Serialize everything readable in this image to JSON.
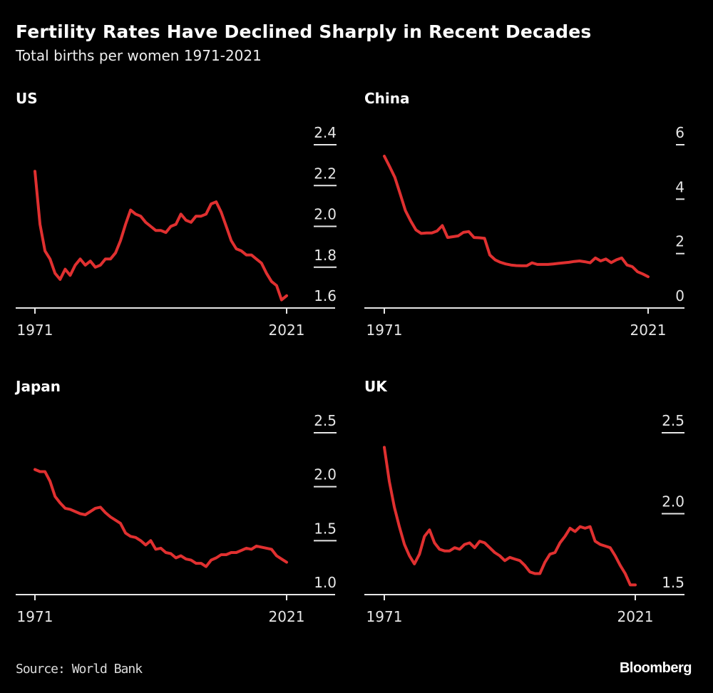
{
  "header": {
    "title": "Fertility Rates Have Declined Sharply in Recent Decades",
    "subtitle": "Total births per women 1971-2021"
  },
  "footer": {
    "source": "Source: World Bank",
    "logo": "Bloomberg"
  },
  "colors": {
    "background": "#000000",
    "line": "#e03030",
    "text": "#ffffff"
  },
  "chart_data": [
    {
      "type": "line",
      "title": "US",
      "x_ticks": [
        "1971",
        "2021"
      ],
      "y_ticks": [
        "1.6",
        "1.8",
        "2.0",
        "2.2",
        "2.4"
      ],
      "ylim": [
        1.6,
        2.4
      ],
      "xlim": [
        1971,
        2021
      ],
      "y_axis_side": "right",
      "grid": false,
      "x_start": 1971,
      "values": [
        2.27,
        2.01,
        1.88,
        1.84,
        1.77,
        1.74,
        1.79,
        1.76,
        1.81,
        1.84,
        1.81,
        1.83,
        1.8,
        1.81,
        1.84,
        1.84,
        1.87,
        1.93,
        2.01,
        2.08,
        2.06,
        2.05,
        2.02,
        2.0,
        1.98,
        1.98,
        1.97,
        2.0,
        2.01,
        2.06,
        2.03,
        2.02,
        2.05,
        2.05,
        2.06,
        2.11,
        2.12,
        2.07,
        2.0,
        1.93,
        1.89,
        1.88,
        1.86,
        1.86,
        1.84,
        1.82,
        1.77,
        1.73,
        1.71,
        1.64,
        1.66
      ]
    },
    {
      "type": "line",
      "title": "China",
      "x_ticks": [
        "1971",
        "2021"
      ],
      "y_ticks": [
        "0",
        "2",
        "4",
        "6"
      ],
      "ylim": [
        0,
        6
      ],
      "xlim": [
        1971,
        2021
      ],
      "y_axis_side": "right",
      "grid": false,
      "x_start": 1971,
      "values": [
        5.58,
        5.2,
        4.8,
        4.2,
        3.58,
        3.2,
        2.87,
        2.74,
        2.76,
        2.76,
        2.83,
        3.03,
        2.59,
        2.62,
        2.65,
        2.78,
        2.81,
        2.59,
        2.58,
        2.56,
        1.95,
        1.77,
        1.68,
        1.62,
        1.58,
        1.56,
        1.55,
        1.55,
        1.66,
        1.6,
        1.6,
        1.6,
        1.62,
        1.64,
        1.66,
        1.68,
        1.71,
        1.73,
        1.7,
        1.66,
        1.84,
        1.73,
        1.8,
        1.67,
        1.77,
        1.84,
        1.58,
        1.52,
        1.33,
        1.25,
        1.15
      ]
    },
    {
      "type": "line",
      "title": "Japan",
      "x_ticks": [
        "1971",
        "2021"
      ],
      "y_ticks": [
        "1.0",
        "1.5",
        "2.0",
        "2.5"
      ],
      "ylim": [
        1.0,
        2.5
      ],
      "xlim": [
        1971,
        2021
      ],
      "y_axis_side": "right",
      "grid": false,
      "x_start": 1971,
      "values": [
        2.16,
        2.14,
        2.14,
        2.05,
        1.91,
        1.85,
        1.8,
        1.79,
        1.77,
        1.75,
        1.74,
        1.77,
        1.8,
        1.81,
        1.76,
        1.72,
        1.69,
        1.66,
        1.57,
        1.54,
        1.53,
        1.5,
        1.46,
        1.5,
        1.42,
        1.43,
        1.39,
        1.38,
        1.34,
        1.36,
        1.33,
        1.32,
        1.29,
        1.29,
        1.26,
        1.32,
        1.34,
        1.37,
        1.37,
        1.39,
        1.39,
        1.41,
        1.43,
        1.42,
        1.45,
        1.44,
        1.43,
        1.42,
        1.36,
        1.33,
        1.3
      ]
    },
    {
      "type": "line",
      "title": "UK",
      "x_ticks": [
        "1971",
        "2021"
      ],
      "y_ticks": [
        "1.5",
        "2.0",
        "2.5"
      ],
      "ylim": [
        1.5,
        2.5
      ],
      "xlim": [
        1971,
        2021
      ],
      "y_axis_side": "right",
      "grid": false,
      "x_start": 1971,
      "values": [
        2.41,
        2.2,
        2.04,
        1.92,
        1.81,
        1.74,
        1.69,
        1.75,
        1.86,
        1.9,
        1.82,
        1.78,
        1.77,
        1.77,
        1.79,
        1.78,
        1.81,
        1.82,
        1.79,
        1.83,
        1.82,
        1.79,
        1.76,
        1.74,
        1.71,
        1.73,
        1.72,
        1.71,
        1.68,
        1.64,
        1.63,
        1.63,
        1.7,
        1.75,
        1.76,
        1.82,
        1.86,
        1.91,
        1.89,
        1.92,
        1.91,
        1.92,
        1.83,
        1.81,
        1.8,
        1.79,
        1.74,
        1.68,
        1.63,
        1.56,
        1.56
      ]
    }
  ]
}
